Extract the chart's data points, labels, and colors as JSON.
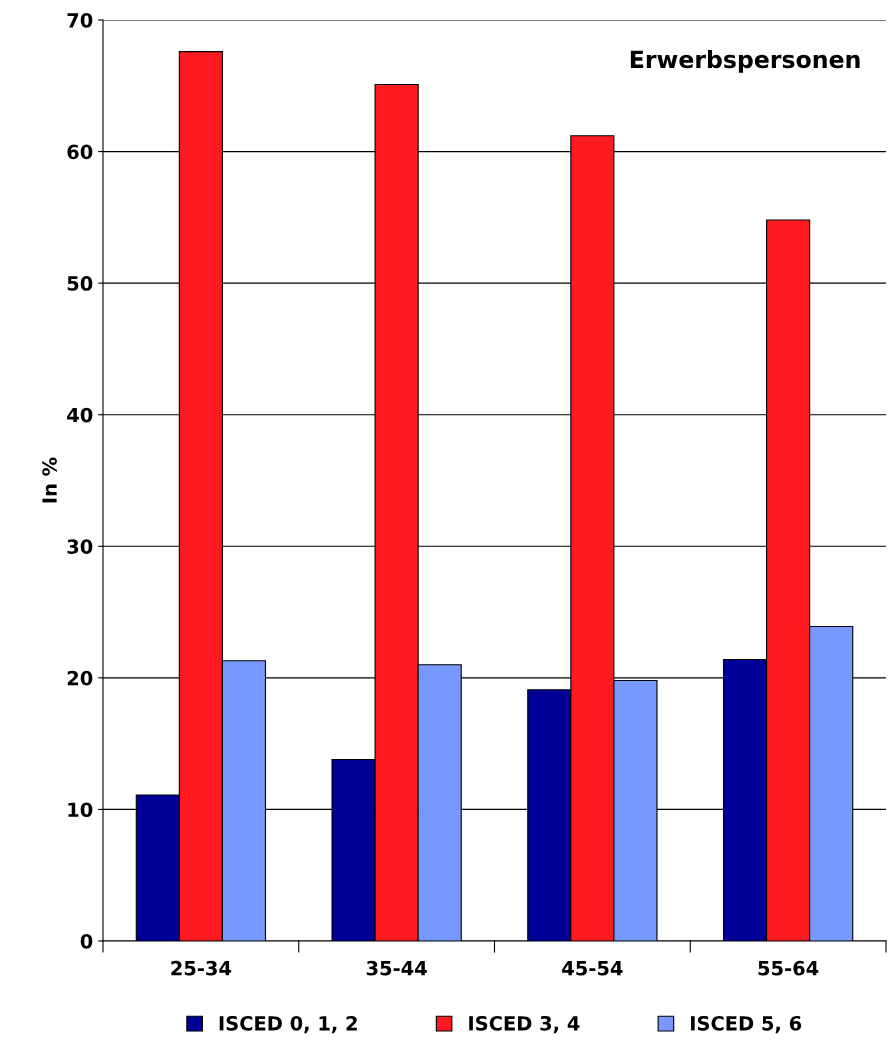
{
  "chart_data": {
    "type": "bar",
    "title": "Erwerbspersonen",
    "ylabel": "In %",
    "categories": [
      "25-34",
      "35-44",
      "45-54",
      "55-64"
    ],
    "series": [
      {
        "name": "ISCED 0, 1, 2",
        "color": "#000099",
        "values": [
          11.1,
          13.8,
          19.1,
          21.4
        ]
      },
      {
        "name": "ISCED 3, 4",
        "color": "#ff1a22",
        "values": [
          67.6,
          65.1,
          61.2,
          54.8
        ]
      },
      {
        "name": "ISCED 5, 6",
        "color": "#7799ff",
        "values": [
          21.3,
          21.0,
          19.8,
          23.9
        ]
      }
    ],
    "ylim": [
      0,
      70
    ],
    "yticks": [
      0,
      10,
      20,
      30,
      40,
      50,
      60,
      70
    ],
    "grid": "y",
    "legend": "bottom"
  }
}
